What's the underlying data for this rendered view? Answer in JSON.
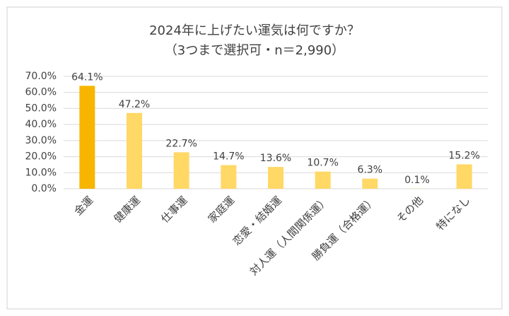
{
  "chart_data": {
    "type": "bar",
    "title": "2024年に上げたい運気は何ですか？",
    "subtitle": "（3つまで選択可・n＝2,990）",
    "categories": [
      "金運",
      "健康運",
      "仕事運",
      "家庭運",
      "恋愛・結婚運",
      "対人運（人間関係運）",
      "勝負運（合格運）",
      "その他",
      "特になし"
    ],
    "values": [
      64.1,
      47.2,
      22.7,
      14.7,
      13.6,
      10.7,
      6.3,
      0.1,
      15.2
    ],
    "value_labels": [
      "64.1%",
      "47.2%",
      "22.7%",
      "14.7%",
      "13.6%",
      "10.7%",
      "6.3%",
      "0.1%",
      "15.2%"
    ],
    "colors": [
      "#f7b500",
      "#ffd865",
      "#ffd865",
      "#ffd865",
      "#ffd865",
      "#ffd865",
      "#ffd865",
      "#ffd865",
      "#ffd865"
    ],
    "ylim": [
      0,
      70
    ],
    "yticks": [
      {
        "value": 0,
        "label": "0.0%"
      },
      {
        "value": 10,
        "label": "10.0%"
      },
      {
        "value": 20,
        "label": "20.0%"
      },
      {
        "value": 30,
        "label": "30.0%"
      },
      {
        "value": 40,
        "label": "40.0%"
      },
      {
        "value": 50,
        "label": "50.0%"
      },
      {
        "value": 60,
        "label": "60.0%"
      },
      {
        "value": 70,
        "label": "70.0%"
      }
    ],
    "grid": true
  }
}
